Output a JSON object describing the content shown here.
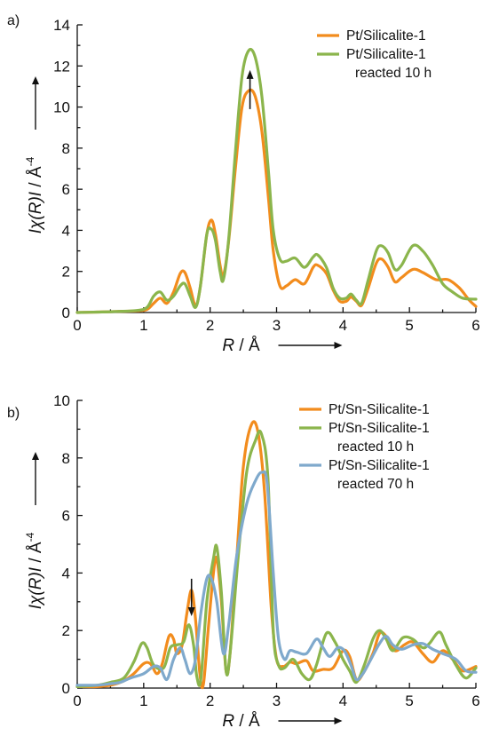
{
  "chart_data": [
    {
      "panel_label": "a)",
      "type": "line",
      "xlabel": "R / Å",
      "ylabel": "Iχ(R)I / Å",
      "ylabel_exponent": "-4",
      "xlim": [
        0,
        6
      ],
      "ylim": [
        0,
        14
      ],
      "xticks": [
        0,
        1,
        2,
        3,
        4,
        5,
        6
      ],
      "yticks": [
        0,
        2,
        4,
        6,
        8,
        10,
        12,
        14
      ],
      "grid": false,
      "legend_position": "top-right",
      "annotation": {
        "type": "arrow",
        "direction": "up",
        "x": 2.6,
        "y_from": 9.9,
        "y_to": 11.8
      },
      "series": [
        {
          "name": "Pt/Silicalite-1",
          "color": "#f28c1d",
          "points": [
            [
              0,
              0
            ],
            [
              0.3,
              0.02
            ],
            [
              0.6,
              0.05
            ],
            [
              0.9,
              0.08
            ],
            [
              1.05,
              0.15
            ],
            [
              1.15,
              0.45
            ],
            [
              1.25,
              0.7
            ],
            [
              1.35,
              0.45
            ],
            [
              1.45,
              1.0
            ],
            [
              1.55,
              1.9
            ],
            [
              1.62,
              1.95
            ],
            [
              1.7,
              1.2
            ],
            [
              1.78,
              0.35
            ],
            [
              1.85,
              1.2
            ],
            [
              1.95,
              3.8
            ],
            [
              2.02,
              4.5
            ],
            [
              2.08,
              3.8
            ],
            [
              2.15,
              2.3
            ],
            [
              2.2,
              1.8
            ],
            [
              2.28,
              3.5
            ],
            [
              2.38,
              7.0
            ],
            [
              2.48,
              10.0
            ],
            [
              2.58,
              10.8
            ],
            [
              2.68,
              10.5
            ],
            [
              2.78,
              8.8
            ],
            [
              2.88,
              5.5
            ],
            [
              2.95,
              3.0
            ],
            [
              3.05,
              1.3
            ],
            [
              3.15,
              1.3
            ],
            [
              3.28,
              1.6
            ],
            [
              3.42,
              1.4
            ],
            [
              3.55,
              2.2
            ],
            [
              3.62,
              2.3
            ],
            [
              3.75,
              1.9
            ],
            [
              3.85,
              1.1
            ],
            [
              3.95,
              0.55
            ],
            [
              4.05,
              0.55
            ],
            [
              4.12,
              0.75
            ],
            [
              4.2,
              0.55
            ],
            [
              4.28,
              0.35
            ],
            [
              4.38,
              1.2
            ],
            [
              4.5,
              2.4
            ],
            [
              4.58,
              2.6
            ],
            [
              4.68,
              2.2
            ],
            [
              4.78,
              1.5
            ],
            [
              4.88,
              1.7
            ],
            [
              5.05,
              2.1
            ],
            [
              5.2,
              1.95
            ],
            [
              5.4,
              1.6
            ],
            [
              5.58,
              1.6
            ],
            [
              5.75,
              1.2
            ],
            [
              5.9,
              0.6
            ],
            [
              6.0,
              0.3
            ]
          ]
        },
        {
          "name": "Pt/Silicalite-1 reacted 10 h",
          "color": "#8bb54c",
          "points": [
            [
              0,
              0
            ],
            [
              0.3,
              0.02
            ],
            [
              0.6,
              0.05
            ],
            [
              0.9,
              0.1
            ],
            [
              1.05,
              0.25
            ],
            [
              1.15,
              0.8
            ],
            [
              1.25,
              1.0
            ],
            [
              1.35,
              0.6
            ],
            [
              1.45,
              0.8
            ],
            [
              1.55,
              1.3
            ],
            [
              1.62,
              1.4
            ],
            [
              1.7,
              0.8
            ],
            [
              1.78,
              0.25
            ],
            [
              1.85,
              1.2
            ],
            [
              1.95,
              3.8
            ],
            [
              2.02,
              4.05
            ],
            [
              2.08,
              3.5
            ],
            [
              2.15,
              2.0
            ],
            [
              2.2,
              1.6
            ],
            [
              2.28,
              3.6
            ],
            [
              2.38,
              7.8
            ],
            [
              2.48,
              11.5
            ],
            [
              2.58,
              12.75
            ],
            [
              2.68,
              12.4
            ],
            [
              2.78,
              10.5
            ],
            [
              2.88,
              6.8
            ],
            [
              2.95,
              4.0
            ],
            [
              3.05,
              2.6
            ],
            [
              3.15,
              2.5
            ],
            [
              3.28,
              2.65
            ],
            [
              3.42,
              2.2
            ],
            [
              3.55,
              2.7
            ],
            [
              3.62,
              2.8
            ],
            [
              3.75,
              2.2
            ],
            [
              3.85,
              1.2
            ],
            [
              3.95,
              0.7
            ],
            [
              4.05,
              0.7
            ],
            [
              4.12,
              0.9
            ],
            [
              4.2,
              0.6
            ],
            [
              4.28,
              0.45
            ],
            [
              4.38,
              1.6
            ],
            [
              4.5,
              3.0
            ],
            [
              4.58,
              3.25
            ],
            [
              4.68,
              2.9
            ],
            [
              4.78,
              2.1
            ],
            [
              4.88,
              2.3
            ],
            [
              5.05,
              3.25
            ],
            [
              5.2,
              3.0
            ],
            [
              5.35,
              2.3
            ],
            [
              5.5,
              1.4
            ],
            [
              5.65,
              1.0
            ],
            [
              5.8,
              0.7
            ],
            [
              6.0,
              0.65
            ]
          ]
        }
      ]
    },
    {
      "panel_label": "b)",
      "type": "line",
      "xlabel": "R / Å",
      "ylabel": "Iχ(R)I / Å",
      "ylabel_exponent": "-4",
      "xlim": [
        0,
        6
      ],
      "ylim": [
        0,
        10
      ],
      "xticks": [
        0,
        1,
        2,
        3,
        4,
        5,
        6
      ],
      "yticks": [
        0,
        2,
        4,
        6,
        8,
        10
      ],
      "grid": false,
      "legend_position": "top-right",
      "annotation": {
        "type": "arrow",
        "direction": "down",
        "x": 1.72,
        "y_from": 3.8,
        "y_to": 2.5
      },
      "series": [
        {
          "name": "Pt/Sn-Silicalite-1",
          "color": "#f28c1d",
          "points": [
            [
              0,
              0.05
            ],
            [
              0.3,
              0.05
            ],
            [
              0.5,
              0.1
            ],
            [
              0.7,
              0.25
            ],
            [
              0.85,
              0.5
            ],
            [
              1.0,
              0.85
            ],
            [
              1.1,
              0.85
            ],
            [
              1.2,
              0.5
            ],
            [
              1.28,
              0.85
            ],
            [
              1.38,
              1.8
            ],
            [
              1.45,
              1.7
            ],
            [
              1.5,
              1.2
            ],
            [
              1.58,
              1.5
            ],
            [
              1.65,
              2.6
            ],
            [
              1.72,
              3.4
            ],
            [
              1.78,
              2.4
            ],
            [
              1.85,
              0.4
            ],
            [
              1.9,
              0.15
            ],
            [
              1.97,
              2.0
            ],
            [
              2.05,
              4.0
            ],
            [
              2.1,
              4.5
            ],
            [
              2.17,
              3.0
            ],
            [
              2.24,
              0.6
            ],
            [
              2.3,
              1.2
            ],
            [
              2.4,
              4.5
            ],
            [
              2.5,
              7.7
            ],
            [
              2.62,
              9.15
            ],
            [
              2.72,
              8.9
            ],
            [
              2.82,
              6.8
            ],
            [
              2.92,
              2.8
            ],
            [
              3.0,
              1.0
            ],
            [
              3.1,
              0.75
            ],
            [
              3.2,
              0.9
            ],
            [
              3.3,
              0.85
            ],
            [
              3.45,
              0.95
            ],
            [
              3.55,
              0.6
            ],
            [
              3.7,
              0.65
            ],
            [
              3.85,
              0.7
            ],
            [
              4.0,
              1.3
            ],
            [
              4.1,
              1.1
            ],
            [
              4.2,
              0.3
            ],
            [
              4.3,
              0.5
            ],
            [
              4.45,
              1.2
            ],
            [
              4.55,
              1.9
            ],
            [
              4.65,
              1.8
            ],
            [
              4.78,
              1.3
            ],
            [
              4.92,
              1.5
            ],
            [
              5.05,
              1.6
            ],
            [
              5.2,
              1.2
            ],
            [
              5.35,
              0.9
            ],
            [
              5.5,
              1.3
            ],
            [
              5.65,
              1.0
            ],
            [
              5.8,
              0.6
            ],
            [
              6.0,
              0.75
            ]
          ]
        },
        {
          "name": "Pt/Sn-Silicalite-1 reacted 10 h",
          "color": "#8bb54c",
          "points": [
            [
              0,
              0.05
            ],
            [
              0.3,
              0.1
            ],
            [
              0.5,
              0.2
            ],
            [
              0.7,
              0.35
            ],
            [
              0.85,
              0.9
            ],
            [
              0.97,
              1.55
            ],
            [
              1.05,
              1.4
            ],
            [
              1.15,
              0.8
            ],
            [
              1.3,
              0.7
            ],
            [
              1.4,
              1.4
            ],
            [
              1.5,
              1.5
            ],
            [
              1.6,
              1.6
            ],
            [
              1.68,
              2.2
            ],
            [
              1.75,
              1.5
            ],
            [
              1.8,
              0.4
            ],
            [
              1.86,
              0.3
            ],
            [
              1.95,
              3.0
            ],
            [
              2.05,
              4.5
            ],
            [
              2.1,
              4.9
            ],
            [
              2.17,
              3.3
            ],
            [
              2.24,
              0.6
            ],
            [
              2.3,
              1.2
            ],
            [
              2.42,
              4.5
            ],
            [
              2.55,
              7.5
            ],
            [
              2.68,
              8.6
            ],
            [
              2.77,
              8.85
            ],
            [
              2.87,
              7.3
            ],
            [
              2.95,
              2.0
            ],
            [
              3.03,
              0.8
            ],
            [
              3.12,
              0.7
            ],
            [
              3.25,
              1.0
            ],
            [
              3.38,
              0.5
            ],
            [
              3.5,
              0.3
            ],
            [
              3.6,
              0.8
            ],
            [
              3.75,
              1.9
            ],
            [
              3.88,
              1.6
            ],
            [
              4.0,
              1.0
            ],
            [
              4.1,
              0.6
            ],
            [
              4.2,
              0.2
            ],
            [
              4.32,
              0.8
            ],
            [
              4.45,
              1.7
            ],
            [
              4.55,
              2.0
            ],
            [
              4.65,
              1.7
            ],
            [
              4.75,
              1.3
            ],
            [
              4.9,
              1.75
            ],
            [
              5.05,
              1.7
            ],
            [
              5.2,
              1.4
            ],
            [
              5.3,
              1.55
            ],
            [
              5.45,
              1.95
            ],
            [
              5.55,
              1.5
            ],
            [
              5.7,
              0.8
            ],
            [
              5.85,
              0.35
            ],
            [
              6.0,
              0.7
            ]
          ]
        },
        {
          "name": "Pt/Sn-Silicalite-1 reacted 70 h",
          "color": "#7fa9cc",
          "points": [
            [
              0,
              0.1
            ],
            [
              0.3,
              0.1
            ],
            [
              0.5,
              0.15
            ],
            [
              0.65,
              0.2
            ],
            [
              0.8,
              0.35
            ],
            [
              1.0,
              0.5
            ],
            [
              1.15,
              0.75
            ],
            [
              1.25,
              0.7
            ],
            [
              1.35,
              0.3
            ],
            [
              1.45,
              1.0
            ],
            [
              1.55,
              1.4
            ],
            [
              1.62,
              1.0
            ],
            [
              1.7,
              0.5
            ],
            [
              1.78,
              1.0
            ],
            [
              1.86,
              2.6
            ],
            [
              1.95,
              3.8
            ],
            [
              2.02,
              3.8
            ],
            [
              2.1,
              3.0
            ],
            [
              2.2,
              1.2
            ],
            [
              2.28,
              2.2
            ],
            [
              2.4,
              4.6
            ],
            [
              2.55,
              6.4
            ],
            [
              2.68,
              7.2
            ],
            [
              2.78,
              7.5
            ],
            [
              2.86,
              7.1
            ],
            [
              2.95,
              4.0
            ],
            [
              3.03,
              1.7
            ],
            [
              3.12,
              1.0
            ],
            [
              3.2,
              1.3
            ],
            [
              3.3,
              1.25
            ],
            [
              3.45,
              1.2
            ],
            [
              3.6,
              1.7
            ],
            [
              3.7,
              1.4
            ],
            [
              3.8,
              1.1
            ],
            [
              3.92,
              1.4
            ],
            [
              4.02,
              1.3
            ],
            [
              4.12,
              0.8
            ],
            [
              4.2,
              0.3
            ],
            [
              4.3,
              0.5
            ],
            [
              4.42,
              1.0
            ],
            [
              4.55,
              1.55
            ],
            [
              4.65,
              1.8
            ],
            [
              4.75,
              1.5
            ],
            [
              4.88,
              1.35
            ],
            [
              5.05,
              1.5
            ],
            [
              5.2,
              1.55
            ],
            [
              5.35,
              1.35
            ],
            [
              5.5,
              1.2
            ],
            [
              5.7,
              1.0
            ],
            [
              5.85,
              0.6
            ],
            [
              6.0,
              0.55
            ]
          ]
        }
      ]
    }
  ]
}
